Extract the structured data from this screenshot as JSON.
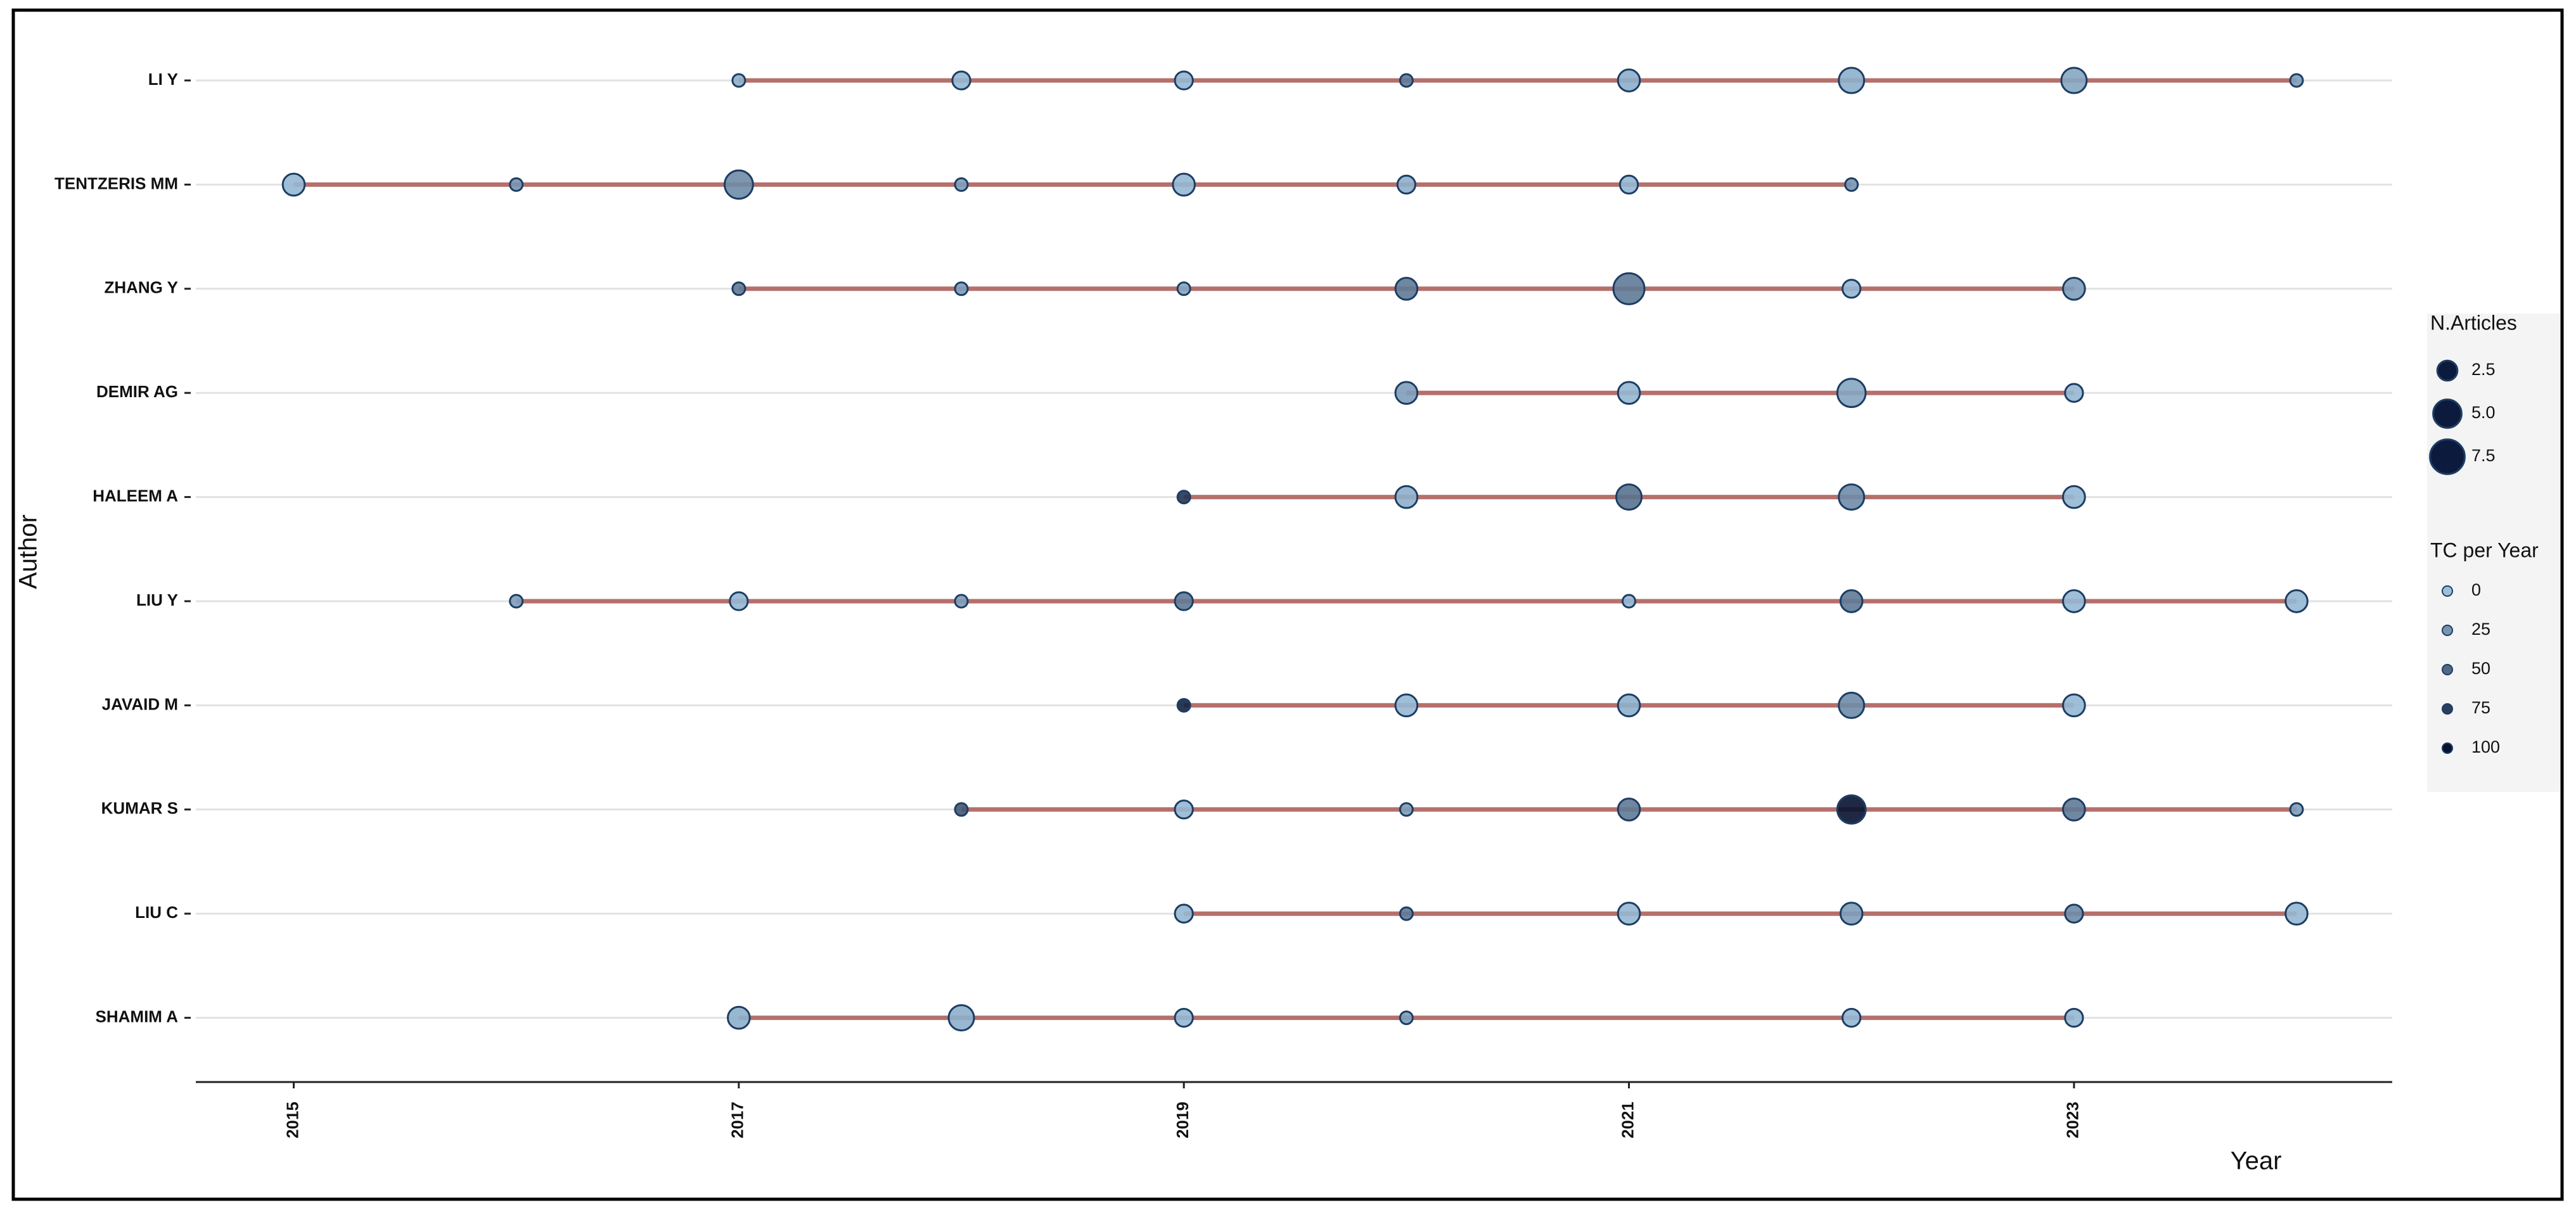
{
  "chart_data": {
    "type": "bubble",
    "x_label": "Year",
    "y_label": "Author",
    "xlim": [
      2014.56,
      2024.43
    ],
    "xticks": [
      2015,
      2017,
      2019,
      2021,
      2023
    ],
    "grid": true,
    "line_color": "#b5706c",
    "color_low": "#9cc0dc",
    "color_high": "#071230",
    "authors": [
      {
        "name": "LI Y",
        "years": [
          2017,
          2018,
          2019,
          2020,
          2021,
          2022,
          2023,
          2024
        ],
        "articles": [
          1,
          2,
          2,
          1,
          3,
          4,
          4,
          1
        ],
        "tc": [
          10,
          5,
          5,
          40,
          10,
          10,
          15,
          20
        ]
      },
      {
        "name": "TENTZERIS MM",
        "years": [
          2015,
          2016,
          2017,
          2018,
          2019,
          2020,
          2021,
          2022
        ],
        "articles": [
          3,
          1,
          5,
          1,
          3,
          2,
          2,
          1
        ],
        "tc": [
          5,
          25,
          30,
          20,
          5,
          10,
          5,
          25
        ]
      },
      {
        "name": "ZHANG Y",
        "years": [
          2017,
          2018,
          2019,
          2020,
          2021,
          2022,
          2023
        ],
        "articles": [
          1,
          1,
          1,
          3,
          6,
          2,
          3
        ],
        "tc": [
          40,
          20,
          15,
          40,
          40,
          5,
          20
        ]
      },
      {
        "name": "DEMIR AG",
        "years": [
          2020,
          2021,
          2022,
          2023
        ],
        "articles": [
          3,
          3,
          5,
          2
        ],
        "tc": [
          20,
          5,
          15,
          5
        ]
      },
      {
        "name": "HALEEM A",
        "years": [
          2019,
          2020,
          2021,
          2022,
          2023
        ],
        "articles": [
          1,
          3,
          4,
          4,
          3
        ],
        "tc": [
          80,
          10,
          45,
          30,
          5
        ]
      },
      {
        "name": "LIU Y",
        "years": [
          2016,
          2017,
          2018,
          2019,
          2021,
          2022,
          2023,
          2024
        ],
        "articles": [
          1,
          2,
          1,
          2,
          1,
          3,
          3,
          3
        ],
        "tc": [
          20,
          5,
          20,
          40,
          5,
          40,
          5,
          5
        ]
      },
      {
        "name": "JAVAID M",
        "years": [
          2019,
          2020,
          2021,
          2022,
          2023
        ],
        "articles": [
          1,
          3,
          3,
          4,
          3
        ],
        "tc": [
          90,
          5,
          10,
          30,
          5
        ]
      },
      {
        "name": "KUMAR S",
        "years": [
          2018,
          2019,
          2020,
          2021,
          2022,
          2023,
          2024
        ],
        "articles": [
          1,
          2,
          1,
          3,
          5,
          3,
          1
        ],
        "tc": [
          60,
          5,
          20,
          40,
          100,
          40,
          20
        ]
      },
      {
        "name": "LIU C",
        "years": [
          2019,
          2020,
          2021,
          2022,
          2023,
          2024
        ],
        "articles": [
          2,
          1,
          3,
          3,
          2,
          3
        ],
        "tc": [
          5,
          40,
          5,
          20,
          30,
          5
        ]
      },
      {
        "name": "SHAMIM A",
        "years": [
          2017,
          2018,
          2019,
          2020,
          2022,
          2023
        ],
        "articles": [
          3,
          4,
          2,
          1,
          2,
          2
        ],
        "tc": [
          10,
          10,
          5,
          20,
          5,
          5
        ]
      }
    ],
    "size_legend": {
      "title": "N.Articles",
      "values": [
        2.5,
        {
          "value": 5,
          "label": "5.0"
        },
        7.5
      ]
    },
    "color_legend": {
      "title": "TC per Year",
      "values": [
        0,
        25,
        50,
        75,
        100
      ]
    }
  }
}
